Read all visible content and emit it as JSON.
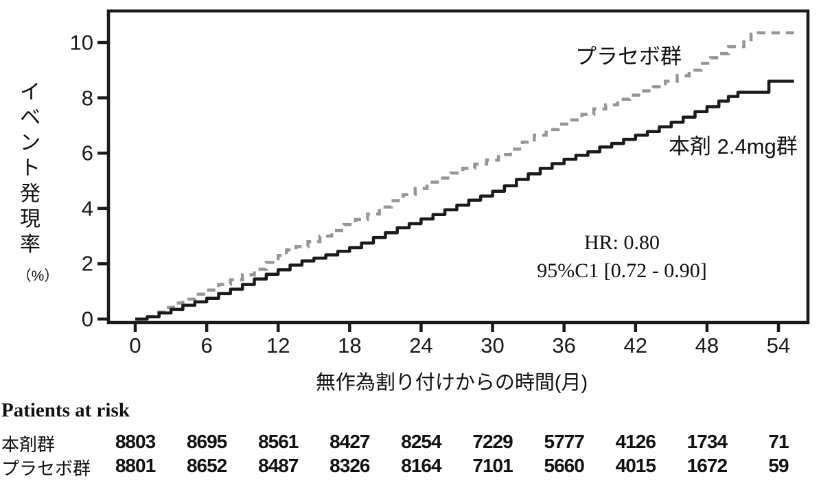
{
  "chart_data": {
    "type": "line",
    "subtype": "kaplan-meier-cumulative-incidence",
    "xlabel": "無作為割り付けからの時間(月)",
    "ylabel": "イベント発現率",
    "ylabel_unit": "（%）",
    "xticks": [
      0,
      6,
      12,
      18,
      24,
      30,
      36,
      42,
      48,
      54
    ],
    "yticks": [
      0,
      2,
      4,
      6,
      8,
      10
    ],
    "xlim": [
      0,
      56.5
    ],
    "ylim": [
      0,
      11.2
    ],
    "grid": false,
    "annotation": [
      "HR: 0.80",
      "95%C1 [0.72 - 0.90]"
    ],
    "series": [
      {
        "name": "プラセボ群",
        "style": "dashed",
        "color": "#969696",
        "points": [
          [
            0,
            0
          ],
          [
            0.8,
            0.1
          ],
          [
            1.6,
            0.25
          ],
          [
            2.4,
            0.42
          ],
          [
            3.2,
            0.58
          ],
          [
            4,
            0.72
          ],
          [
            5,
            0.9
          ],
          [
            6,
            1.05
          ],
          [
            7,
            1.25
          ],
          [
            8,
            1.42
          ],
          [
            9,
            1.6
          ],
          [
            10,
            1.8
          ],
          [
            11,
            2.05
          ],
          [
            12,
            2.3
          ],
          [
            12.7,
            2.5
          ],
          [
            13.5,
            2.62
          ],
          [
            14.5,
            2.8
          ],
          [
            15.5,
            3.0
          ],
          [
            16.5,
            3.2
          ],
          [
            17.5,
            3.42
          ],
          [
            18.5,
            3.6
          ],
          [
            19.5,
            3.8
          ],
          [
            20.5,
            4.05
          ],
          [
            21.5,
            4.28
          ],
          [
            22.5,
            4.5
          ],
          [
            23.5,
            4.72
          ],
          [
            24.5,
            4.95
          ],
          [
            25.5,
            5.1
          ],
          [
            26.5,
            5.28
          ],
          [
            27.5,
            5.45
          ],
          [
            28.5,
            5.6
          ],
          [
            29.5,
            5.75
          ],
          [
            30.5,
            5.95
          ],
          [
            31.5,
            6.15
          ],
          [
            32.5,
            6.4
          ],
          [
            33.5,
            6.65
          ],
          [
            34.5,
            6.85
          ],
          [
            35.5,
            7.05
          ],
          [
            36.5,
            7.2
          ],
          [
            37.5,
            7.4
          ],
          [
            38.5,
            7.6
          ],
          [
            39.5,
            7.75
          ],
          [
            40.5,
            7.95
          ],
          [
            41.5,
            8.1
          ],
          [
            42.5,
            8.25
          ],
          [
            43.5,
            8.4
          ],
          [
            44.5,
            8.6
          ],
          [
            45.5,
            8.8
          ],
          [
            46.5,
            9.0
          ],
          [
            47.5,
            9.25
          ],
          [
            48.3,
            9.45
          ],
          [
            49,
            9.6
          ],
          [
            49.8,
            9.85
          ],
          [
            51.1,
            10.1
          ],
          [
            51.7,
            10.3
          ],
          [
            52.3,
            10.35
          ],
          [
            55.3,
            10.35
          ]
        ]
      },
      {
        "name": "本剤 2.4mg群",
        "style": "solid",
        "color": "#1a1a1a",
        "points": [
          [
            0,
            0
          ],
          [
            1,
            0.08
          ],
          [
            2,
            0.22
          ],
          [
            3,
            0.35
          ],
          [
            4,
            0.5
          ],
          [
            5,
            0.62
          ],
          [
            6,
            0.75
          ],
          [
            7,
            0.92
          ],
          [
            8,
            1.08
          ],
          [
            9,
            1.25
          ],
          [
            10,
            1.45
          ],
          [
            11,
            1.62
          ],
          [
            12,
            1.78
          ],
          [
            13,
            1.95
          ],
          [
            14,
            2.1
          ],
          [
            15,
            2.2
          ],
          [
            16,
            2.32
          ],
          [
            17,
            2.45
          ],
          [
            18,
            2.58
          ],
          [
            19,
            2.75
          ],
          [
            20,
            2.95
          ],
          [
            21,
            3.12
          ],
          [
            22,
            3.3
          ],
          [
            23,
            3.45
          ],
          [
            24,
            3.62
          ],
          [
            25,
            3.78
          ],
          [
            26,
            3.95
          ],
          [
            27,
            4.12
          ],
          [
            28,
            4.3
          ],
          [
            29,
            4.45
          ],
          [
            30,
            4.62
          ],
          [
            31,
            4.82
          ],
          [
            32,
            5.05
          ],
          [
            33,
            5.25
          ],
          [
            34,
            5.45
          ],
          [
            35,
            5.62
          ],
          [
            36,
            5.78
          ],
          [
            37,
            5.92
          ],
          [
            38,
            6.05
          ],
          [
            39,
            6.22
          ],
          [
            40,
            6.35
          ],
          [
            41,
            6.5
          ],
          [
            42,
            6.65
          ],
          [
            43,
            6.78
          ],
          [
            44,
            6.95
          ],
          [
            45,
            7.12
          ],
          [
            46,
            7.3
          ],
          [
            47,
            7.5
          ],
          [
            48,
            7.68
          ],
          [
            49,
            7.88
          ],
          [
            49.8,
            8.05
          ],
          [
            50.6,
            8.2
          ],
          [
            53.0,
            8.2
          ],
          [
            53.2,
            8.6
          ],
          [
            55.3,
            8.6
          ]
        ]
      }
    ]
  },
  "risk_table": {
    "title": "Patients at risk",
    "months": [
      0,
      6,
      12,
      18,
      24,
      30,
      36,
      42,
      48,
      54
    ],
    "rows": [
      {
        "label": "本剤群",
        "values": [
          "8803",
          "8695",
          "8561",
          "8427",
          "8254",
          "7229",
          "5777",
          "4126",
          "1734",
          "71"
        ]
      },
      {
        "label": "プラセボ群",
        "values": [
          "8801",
          "8652",
          "8487",
          "8326",
          "8164",
          "7101",
          "5660",
          "4015",
          "1672",
          "59"
        ]
      }
    ]
  }
}
